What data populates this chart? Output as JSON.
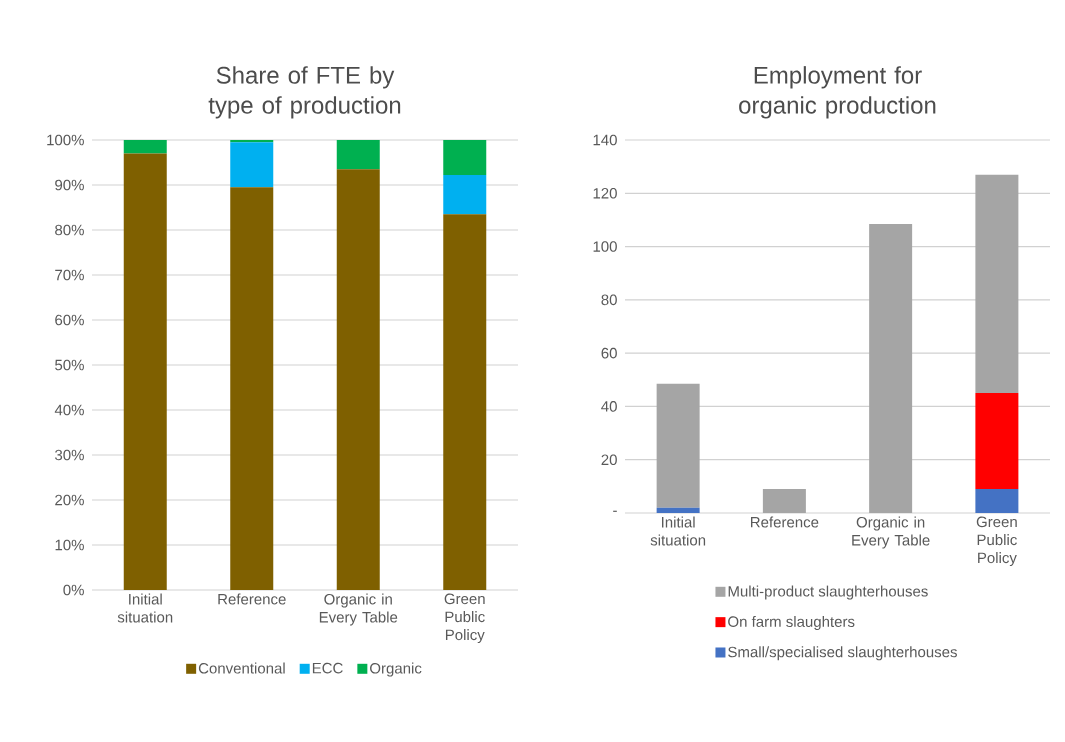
{
  "chart_data": [
    {
      "type": "bar",
      "title": "Share of FTE by type of production",
      "stacked": true,
      "categories": [
        "Initial situation",
        "Reference",
        "Organic in Every Table",
        "Green Public Policy"
      ],
      "series": [
        {
          "name": "Conventional",
          "color": "#7f6000",
          "values": [
            97,
            89.5,
            93.5,
            83.5
          ]
        },
        {
          "name": "ECC",
          "color": "#00b0f0",
          "values": [
            0,
            10,
            0,
            8.7
          ]
        },
        {
          "name": "Organic",
          "color": "#00b050",
          "values": [
            3,
            0.5,
            6.5,
            7.8
          ]
        }
      ],
      "ylim": [
        0,
        100
      ],
      "yticks": [
        {
          "value": 0,
          "label": "0%"
        },
        {
          "value": 10,
          "label": "10%"
        },
        {
          "value": 20,
          "label": "20%"
        },
        {
          "value": 30,
          "label": "30%"
        },
        {
          "value": 40,
          "label": "40%"
        },
        {
          "value": 50,
          "label": "50%"
        },
        {
          "value": 60,
          "label": "60%"
        },
        {
          "value": 70,
          "label": "70%"
        },
        {
          "value": 80,
          "label": "80%"
        },
        {
          "value": 90,
          "label": "90%"
        },
        {
          "value": 100,
          "label": "100%"
        }
      ],
      "grid": "y",
      "legend": "bottom"
    },
    {
      "type": "bar",
      "title": "Employment for organic production",
      "stacked": true,
      "categories": [
        "Initial situation",
        "Reference",
        "Organic in Every Table",
        "Green Public Policy"
      ],
      "series": [
        {
          "name": "Small/specialised slaughterhouses",
          "color": "#4472c4",
          "values": [
            2,
            0,
            0,
            9
          ]
        },
        {
          "name": "On farm slaughters",
          "color": "#ff0000",
          "values": [
            0,
            0,
            0,
            36
          ]
        },
        {
          "name": "Multi-product slaughterhouses",
          "color": "#a5a5a5",
          "values": [
            46.5,
            9,
            108.5,
            82
          ]
        }
      ],
      "ylim": [
        0,
        140
      ],
      "yticks": [
        {
          "value": 0,
          "label": "-"
        },
        20,
        40,
        60,
        80,
        100,
        120,
        140
      ],
      "grid": "y",
      "legend": "bottom"
    }
  ]
}
